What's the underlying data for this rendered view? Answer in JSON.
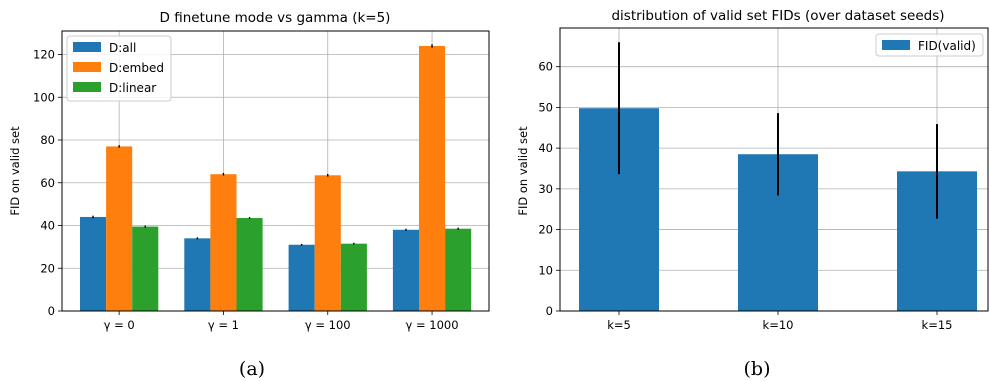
{
  "chart_data": [
    {
      "type": "bar",
      "title": "D finetune mode vs gamma (k=5)",
      "ylabel": "FID on valid set",
      "xlabel": "",
      "categories": [
        "γ = 0",
        "γ = 1",
        "γ = 100",
        "γ = 1000"
      ],
      "series": [
        {
          "name": "D:all",
          "color": "#1f77b4",
          "values": [
            44,
            34,
            31,
            38
          ],
          "errors": [
            0.6,
            0.5,
            0.4,
            0.5
          ]
        },
        {
          "name": "D:embed",
          "color": "#ff7f0e",
          "values": [
            77,
            64,
            63.5,
            124
          ],
          "errors": [
            0.6,
            0.6,
            0.6,
            0.8
          ]
        },
        {
          "name": "D:linear",
          "color": "#2ca02c",
          "values": [
            39.5,
            43.5,
            31.5,
            38.5
          ],
          "errors": [
            0.5,
            0.5,
            0.4,
            0.5
          ]
        }
      ],
      "ylim": [
        0,
        131
      ],
      "yticks": [
        0,
        20,
        40,
        60,
        80,
        100,
        120
      ],
      "grid": true,
      "legend": "top-left",
      "caption": "(a)"
    },
    {
      "type": "bar",
      "title": "distribution of valid set FIDs (over dataset seeds)",
      "ylabel": "FID on valid set",
      "xlabel": "",
      "categories": [
        "k=5",
        "k=10",
        "k=15"
      ],
      "series": [
        {
          "name": "FID(valid)",
          "color": "#1f77b4",
          "values": [
            49.8,
            38.5,
            34.3
          ],
          "errors": [
            16.2,
            10.1,
            11.6
          ]
        }
      ],
      "ylim": [
        0,
        69.5
      ],
      "yticks": [
        0,
        10,
        20,
        30,
        40,
        50,
        60
      ],
      "grid": true,
      "legend": "top-right",
      "caption": "(b)"
    }
  ]
}
